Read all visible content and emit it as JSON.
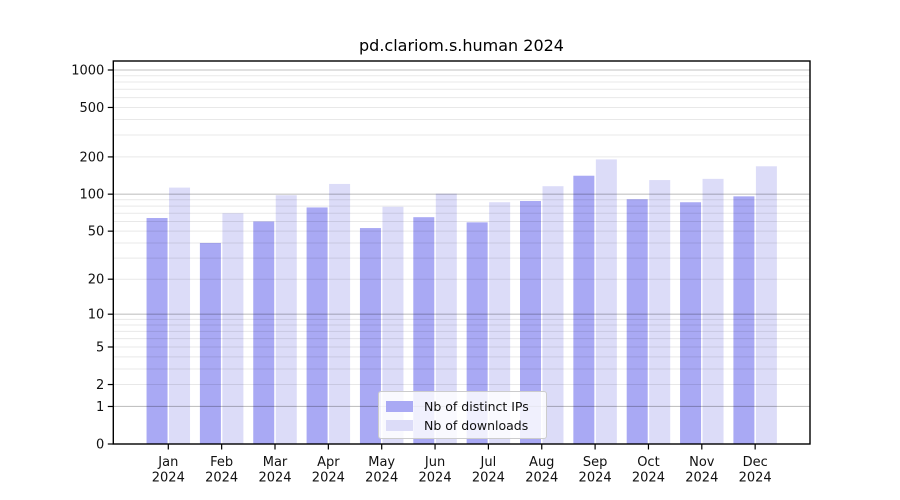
{
  "chart_data": {
    "type": "bar",
    "title": "pd.clariom.s.human 2024",
    "categories": [
      "Jan",
      "Feb",
      "Mar",
      "Apr",
      "May",
      "Jun",
      "Jul",
      "Aug",
      "Sep",
      "Oct",
      "Nov",
      "Dec"
    ],
    "category_year": "2024",
    "series": [
      {
        "name": "Nb of distinct IPs",
        "color": "#a9a9f4",
        "values": [
          64,
          40,
          60,
          78,
          53,
          65,
          59,
          88,
          141,
          91,
          86,
          96
        ]
      },
      {
        "name": "Nb of downloads",
        "color": "#dcdcf8",
        "values": [
          113,
          70,
          98,
          121,
          79,
          101,
          86,
          116,
          191,
          130,
          133,
          168
        ]
      }
    ],
    "y_ticks": [
      0,
      1,
      2,
      5,
      10,
      20,
      50,
      100,
      200,
      500,
      1000
    ],
    "y_scale": "log1p",
    "ylim": [
      0,
      1000
    ],
    "xlabel": "",
    "ylabel": "",
    "grid": true,
    "legend_position": "lower center",
    "colors": {
      "major_grid": "#c3c3c3",
      "minor_grid": "#ebebeb",
      "axis": "#000000",
      "text": "#111111",
      "background": "#ffffff"
    }
  }
}
